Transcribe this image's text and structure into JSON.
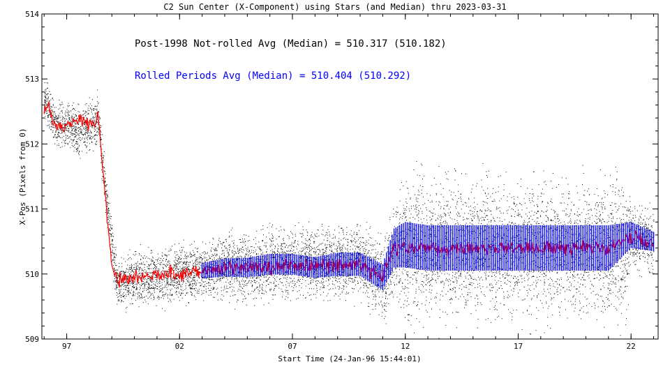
{
  "chart_data": {
    "type": "scatter",
    "title": "C2 Sun Center (X-Component) using Stars (and Median) thru 2023-03-31",
    "xlabel": "Start Time (24-Jan-96 15:44:01)",
    "ylabel": "X-Pos (Pixels from 0)",
    "xlim": [
      1995.9,
      2023.2
    ],
    "ylim": [
      509,
      514
    ],
    "x_ticks": [
      {
        "value": 1997,
        "label": "97"
      },
      {
        "value": 2002,
        "label": "02"
      },
      {
        "value": 2007,
        "label": "07"
      },
      {
        "value": 2012,
        "label": "12"
      },
      {
        "value": 2017,
        "label": "17"
      },
      {
        "value": 2022,
        "label": "22"
      }
    ],
    "y_ticks": [
      509,
      510,
      511,
      512,
      513,
      514
    ],
    "grid": false,
    "annotations": [
      {
        "text": "Post-1998 Not-rolled Avg (Median) = 510.317 (510.182)",
        "color": "#000000"
      },
      {
        "text": "Rolled Periods Avg (Median) = 510.404 (510.292)",
        "color": "#0000ff"
      }
    ],
    "series": [
      {
        "color": "#000000",
        "style": "points",
        "x": [
          1996.0,
          1996.5,
          1997.0,
          1997.5,
          1998.0,
          1998.4,
          1998.8,
          1999.2,
          1999.6,
          2000,
          2001,
          2002,
          2003,
          2004,
          2005,
          2006,
          2007,
          2008,
          2009,
          2010,
          2011,
          2011.5,
          2012,
          2013,
          2014,
          2015,
          2016,
          2017,
          2018,
          2019,
          2020,
          2021,
          2021.8,
          2022,
          2023
        ],
        "y": [
          512.7,
          512.3,
          512.3,
          512.2,
          512.3,
          512.4,
          511.0,
          509.9,
          509.8,
          509.95,
          509.97,
          510.0,
          510.05,
          510.1,
          510.1,
          510.15,
          510.2,
          510.15,
          510.2,
          510.2,
          509.9,
          510.4,
          510.4,
          510.4,
          510.4,
          510.4,
          510.4,
          510.4,
          510.4,
          510.4,
          510.4,
          510.4,
          510.4,
          510.6,
          510.5
        ],
        "spread": [
          0.3,
          0.3,
          0.3,
          0.35,
          0.35,
          0.35,
          0.3,
          0.35,
          0.35,
          0.4,
          0.4,
          0.4,
          0.4,
          0.45,
          0.5,
          0.5,
          0.5,
          0.5,
          0.5,
          0.5,
          0.6,
          0.6,
          1.0,
          1.0,
          1.0,
          1.0,
          1.0,
          1.0,
          1.0,
          1.0,
          1.0,
          1.0,
          1.0,
          0.45,
          0.45
        ]
      },
      {
        "color": "#ff0000",
        "style": "line",
        "x": [
          1996.0,
          1996.2,
          1996.4,
          1996.8,
          1997.2,
          1997.6,
          1998.0,
          1998.4,
          1999.0,
          1999.3,
          1999.6,
          2000,
          2001,
          2002,
          2003,
          2004,
          2005,
          2006,
          2007,
          2008,
          2009,
          2010,
          2011,
          2011.5,
          2012,
          2013,
          2014,
          2015,
          2016,
          2017,
          2018,
          2019,
          2020,
          2021,
          2022,
          2023
        ],
        "y": [
          512.5,
          512.6,
          512.3,
          512.25,
          512.3,
          512.4,
          512.3,
          512.4,
          510.1,
          509.9,
          509.95,
          509.95,
          510.0,
          510.0,
          510.05,
          510.1,
          510.1,
          510.1,
          510.15,
          510.1,
          510.15,
          510.15,
          509.95,
          510.4,
          510.4,
          510.4,
          510.35,
          510.4,
          510.4,
          510.4,
          510.4,
          510.4,
          510.4,
          510.4,
          510.6,
          510.45
        ]
      },
      {
        "color": "#0000ff",
        "style": "band",
        "x": [
          2003.0,
          2004,
          2005,
          2006,
          2007,
          2008,
          2009,
          2010,
          2011,
          2011.5,
          2012,
          2013,
          2014,
          2015,
          2016,
          2017,
          2018,
          2019,
          2020,
          2021,
          2022,
          2023
        ],
        "y": [
          510.05,
          510.1,
          510.1,
          510.15,
          510.15,
          510.1,
          510.15,
          510.15,
          509.95,
          510.4,
          510.45,
          510.4,
          510.4,
          510.4,
          510.4,
          510.4,
          510.4,
          510.4,
          510.4,
          510.4,
          510.6,
          510.5
        ],
        "spread": [
          0.12,
          0.14,
          0.15,
          0.16,
          0.16,
          0.16,
          0.18,
          0.18,
          0.2,
          0.3,
          0.35,
          0.35,
          0.35,
          0.35,
          0.35,
          0.35,
          0.35,
          0.35,
          0.35,
          0.35,
          0.2,
          0.15
        ]
      }
    ]
  }
}
